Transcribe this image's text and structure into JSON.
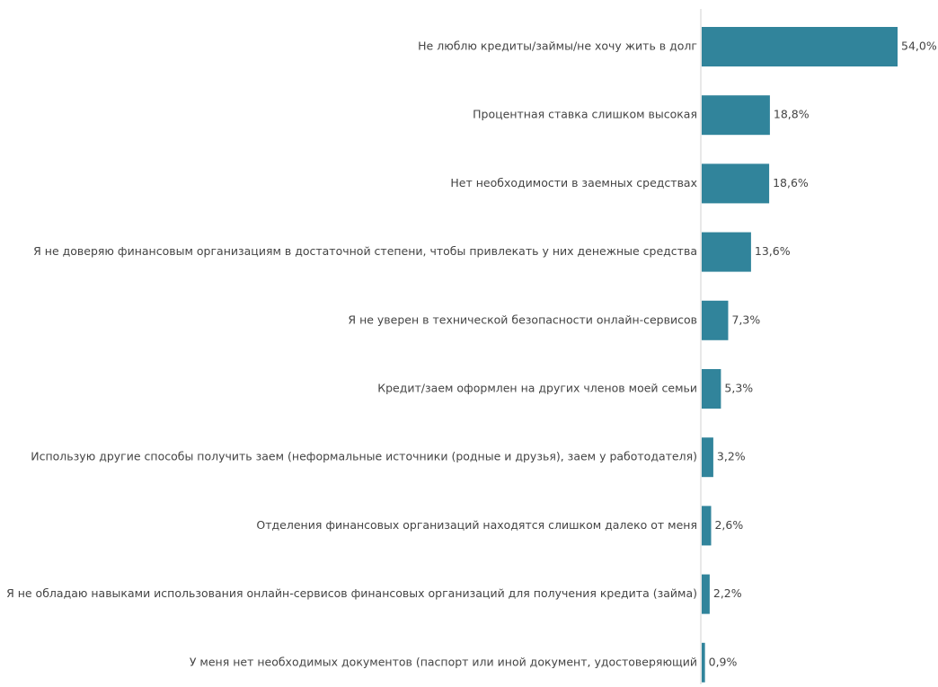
{
  "chart_data": {
    "type": "bar",
    "orientation": "horizontal",
    "categories": [
      "Не люблю кредиты/займы/не хочу жить в долг",
      "Процентная ставка слишком высокая",
      "Нет необходимости в заемных средствах",
      "Я не доверяю финансовым организациям в достаточной степени, чтобы привлекать у них денежные средства",
      "Я не уверен в технической безопасности онлайн-сервисов",
      "Кредит/заем оформлен на других членов моей семьи",
      "Использую другие способы получить заем (неформальные источники (родные и друзья), заем у работодателя)",
      "Отделения финансовых организаций находятся слишком далеко от меня",
      "Я не обладаю навыками использования онлайн-сервисов финансовых организаций для получения кредита (займа)",
      "У меня нет необходимых документов (паспорт или иной документ, удостоверяющий"
    ],
    "values": [
      54.0,
      18.8,
      18.6,
      13.6,
      7.3,
      5.3,
      3.2,
      2.6,
      2.2,
      0.9
    ],
    "value_labels": [
      "54,0%",
      "18,8%",
      "18,6%",
      "13,6%",
      "7,3%",
      "5,3%",
      "3,2%",
      "2,6%",
      "2,2%",
      "0,9%"
    ],
    "unit": "%",
    "xlim": [
      0,
      54.0
    ],
    "grid": false,
    "legend": "none",
    "bar_color": "#31849B",
    "axis_color": "#D0D0D0",
    "text_color": "#444444"
  }
}
